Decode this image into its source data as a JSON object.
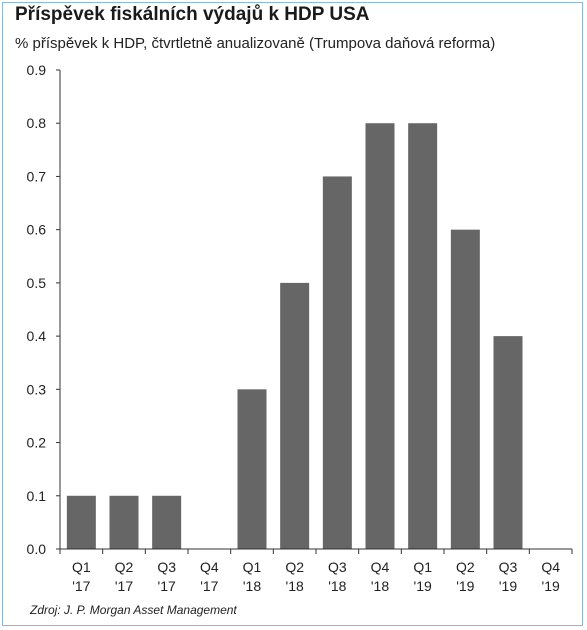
{
  "title": "Příspěvek fiskálních výdajů k HDP USA",
  "subtitle": "% příspěvek k HDP, čtvrtletně anualizovaně (Trumpova daňová reforma)",
  "source": "Zdroj: J. P. Morgan Asset Management",
  "chart_data": {
    "type": "bar",
    "title": "Příspěvek fiskálních výdajů k HDP USA",
    "subtitle": "% příspěvek k HDP, čtvrtletně anualizovaně (Trumpova daňová reforma)",
    "xlabel": "",
    "ylabel": "",
    "categories": [
      [
        "Q1",
        "'17"
      ],
      [
        "Q2",
        "'17"
      ],
      [
        "Q3",
        "'17"
      ],
      [
        "Q4",
        "'17"
      ],
      [
        "Q1",
        "'18"
      ],
      [
        "Q2",
        "'18"
      ],
      [
        "Q3",
        "'18"
      ],
      [
        "Q4",
        "'18"
      ],
      [
        "Q1",
        "'19"
      ],
      [
        "Q2",
        "'19"
      ],
      [
        "Q3",
        "'19"
      ],
      [
        "Q4",
        "'19"
      ]
    ],
    "values": [
      0.1,
      0.1,
      0.1,
      0,
      0.3,
      0.5,
      0.7,
      0.8,
      0.8,
      0.6,
      0.4,
      0
    ],
    "ylim": [
      0,
      0.9
    ],
    "yticks": [
      "0.0",
      "0.1",
      "0.2",
      "0.3",
      "0.4",
      "0.5",
      "0.6",
      "0.7",
      "0.8",
      "0.9"
    ],
    "grid": false,
    "bar_color": "#666666"
  }
}
